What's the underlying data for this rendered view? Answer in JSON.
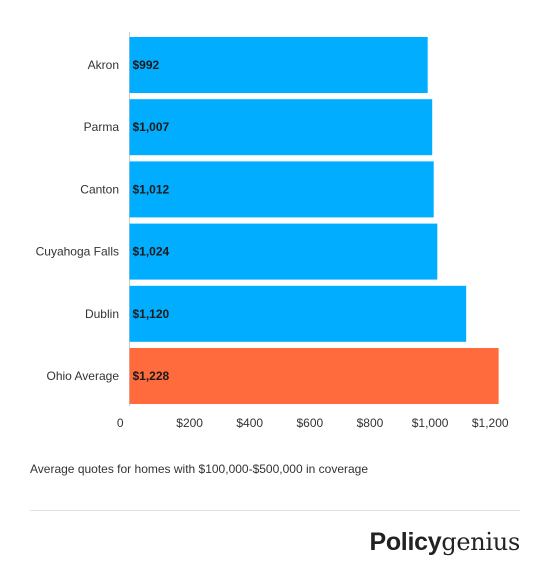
{
  "chart_data": {
    "type": "bar",
    "orientation": "horizontal",
    "categories": [
      "Akron",
      "Parma",
      "Canton",
      "Cuyahoga Falls",
      "Dublin",
      "Ohio Average"
    ],
    "values": [
      992,
      1007,
      1012,
      1024,
      1120,
      1228
    ],
    "data_labels": [
      "$992",
      "$1,007",
      "$1,012",
      "$1,024",
      "$1,120",
      "$1,228"
    ],
    "x_ticks": [
      0,
      200,
      400,
      600,
      800,
      1000,
      1200
    ],
    "x_tick_labels": [
      "0",
      "$200",
      "$400",
      "$600",
      "$800",
      "$1,000",
      "$1,200"
    ],
    "xlim": [
      0,
      1228
    ],
    "title": "",
    "xlabel": "",
    "ylabel": "",
    "grid": false,
    "legend": "none",
    "colors": {
      "default": "#00adff",
      "highlight": "#ff6b3d",
      "highlight_category": "Ohio Average"
    }
  },
  "caption": "Average quotes for homes with $100,000-$500,000 in coverage",
  "brand": {
    "part1": "Policy",
    "part2": "genius"
  }
}
